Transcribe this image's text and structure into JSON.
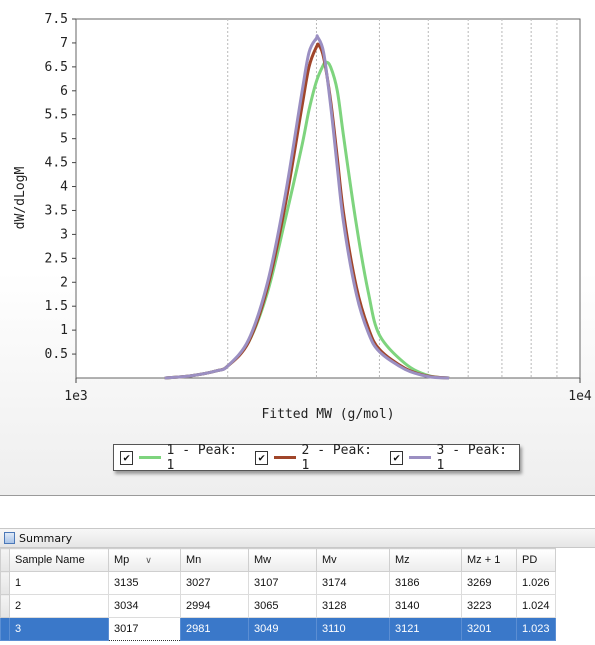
{
  "chart_data": {
    "type": "line",
    "xlabel": "Fitted MW (g/mol)",
    "ylabel": "dW/dLogM",
    "x_scale": "log",
    "xlim": [
      1000,
      10000
    ],
    "ylim": [
      0,
      7.5
    ],
    "x_tick_labels": [
      "1e3",
      "1e4"
    ],
    "y_ticks": [
      0.5,
      1,
      1.5,
      2,
      2.5,
      3,
      3.5,
      4,
      4.5,
      5,
      5.5,
      6,
      6.5,
      7,
      7.5
    ],
    "y_tick_labels": [
      "0.5",
      "1",
      "1.5",
      "2",
      "2.5",
      "3",
      "3.5",
      "4",
      "4.5",
      "5",
      "5.5",
      "6",
      "6.5",
      "7",
      "7.5"
    ],
    "grid": "vertical",
    "legend_position": "bottom",
    "series": [
      {
        "name": "1 - Peak: 1",
        "color": "#7ed47e",
        "x": [
          1500,
          1700,
          1900,
          2000,
          2200,
          2400,
          2600,
          2800,
          2900,
          3000,
          3100,
          3135,
          3200,
          3300,
          3400,
          3600,
          3800,
          4000,
          4500,
          5000,
          5500
        ],
        "y": [
          0.0,
          0.05,
          0.15,
          0.25,
          0.75,
          1.8,
          3.3,
          4.8,
          5.6,
          6.2,
          6.55,
          6.6,
          6.5,
          6.0,
          5.0,
          3.2,
          1.8,
          0.9,
          0.3,
          0.05,
          0.0
        ]
      },
      {
        "name": "2 - Peak: 1",
        "color": "#a0452a",
        "x": [
          1500,
          1700,
          1900,
          2000,
          2200,
          2400,
          2600,
          2800,
          2900,
          3000,
          3034,
          3100,
          3200,
          3300,
          3400,
          3600,
          3800,
          4000,
          4500,
          5000,
          5500
        ],
        "y": [
          0.0,
          0.05,
          0.15,
          0.25,
          0.75,
          1.9,
          3.6,
          5.6,
          6.5,
          6.92,
          6.95,
          6.7,
          5.8,
          4.6,
          3.4,
          1.9,
          1.05,
          0.6,
          0.2,
          0.04,
          0.0
        ]
      },
      {
        "name": "3 - Peak: 1",
        "color": "#9b8fc2",
        "x": [
          1500,
          1700,
          1900,
          2000,
          2200,
          2400,
          2600,
          2800,
          2900,
          3000,
          3017,
          3100,
          3200,
          3300,
          3400,
          3600,
          3800,
          4000,
          4500,
          5000,
          5500
        ],
        "y": [
          0.0,
          0.05,
          0.15,
          0.25,
          0.8,
          2.0,
          3.8,
          5.9,
          6.8,
          7.1,
          7.12,
          6.8,
          5.7,
          4.4,
          3.2,
          1.75,
          0.95,
          0.55,
          0.18,
          0.03,
          0.0
        ]
      }
    ]
  },
  "legend": {
    "items": [
      {
        "label": "1 - Peak: 1",
        "color": "#7ed47e",
        "check": "✔"
      },
      {
        "label": "2 - Peak: 1",
        "color": "#a0452a",
        "check": "✔"
      },
      {
        "label": "3 - Peak: 1",
        "color": "#9b8fc2",
        "check": "✔"
      }
    ]
  },
  "summary": {
    "title": "Summary",
    "columns": [
      "Sample Name",
      "Mp",
      "Mn",
      "Mw",
      "Mv",
      "Mz",
      "Mz + 1",
      "PD"
    ],
    "sort_indicator": "∨",
    "rows": [
      [
        "1",
        "3135",
        "3027",
        "3107",
        "3174",
        "3186",
        "3269",
        "1.026"
      ],
      [
        "2",
        "3034",
        "2994",
        "3065",
        "3128",
        "3140",
        "3223",
        "1.024"
      ],
      [
        "3",
        "3017",
        "2981",
        "3049",
        "3110",
        "3121",
        "3201",
        "1.023"
      ]
    ],
    "selected_row": 2
  }
}
